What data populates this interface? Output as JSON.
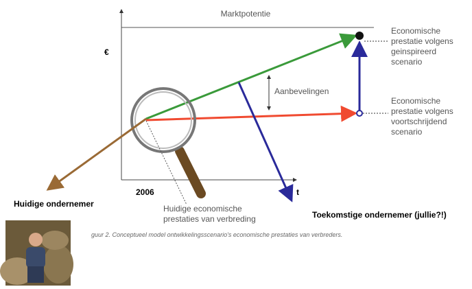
{
  "axis": {
    "y_label": "€",
    "x_label": "t",
    "start_year": "2006"
  },
  "market_potential": "Marktpotentie",
  "scenario_inspired": {
    "lines": [
      "Economische",
      "prestatie volgens",
      "geinspireerd",
      "scenario"
    ]
  },
  "scenario_progressive": {
    "lines": [
      "Economische",
      "prestatie volgens",
      "voortschrijdend",
      "scenario"
    ]
  },
  "recommendations": "Aanbevelingen",
  "current_performance": {
    "lines": [
      "Huidige economische",
      "prestaties van verbreding"
    ]
  },
  "current_entrepreneur": "Huidige ondernemer",
  "future_entrepreneur": "Toekomstige ondernemer (jullie?!)",
  "caption": "guur 2. Conceptueel model ontwikkelingsscenario's economische prestaties van verbreders."
}
